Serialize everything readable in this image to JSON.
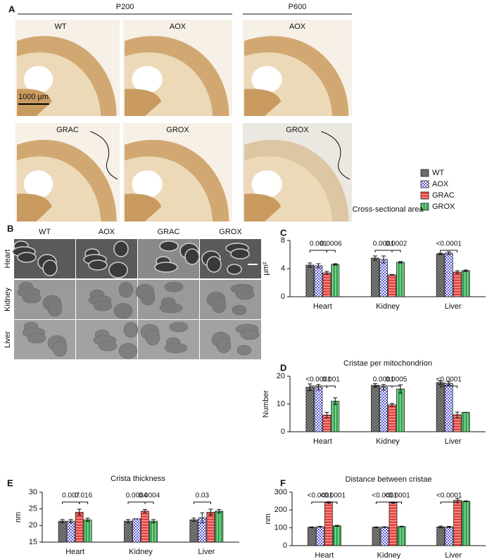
{
  "panel_a": {
    "label": "A",
    "groups": [
      "P200",
      "P600"
    ],
    "images": [
      "WT",
      "AOX",
      "AOX",
      "GRAC",
      "GROX",
      "GROX"
    ],
    "scale_bar": "1000 µm"
  },
  "panel_b": {
    "label": "B",
    "columns": [
      "WT",
      "AOX",
      "GRAC",
      "GROX"
    ],
    "rows": [
      "Heart",
      "Kidney",
      "Liver"
    ]
  },
  "chart_data": [
    {
      "type": "bar",
      "panel": "C",
      "title": "Cross-sectional area",
      "ylabel": "µm²",
      "categories": [
        "Heart",
        "Kidney",
        "Liver"
      ],
      "series": [
        {
          "name": "WT",
          "color": "#8c8c8c",
          "values": [
            4.5,
            5.5,
            6.1
          ],
          "errors": [
            0.3,
            0.3,
            0.1
          ]
        },
        {
          "name": "AOX",
          "color": "#5b5bd6",
          "values": [
            4.4,
            5.3,
            6.2
          ],
          "errors": [
            0.3,
            0.5,
            0.2
          ]
        },
        {
          "name": "GRAC",
          "color": "#e8413c",
          "values": [
            3.4,
            3.1,
            3.5
          ],
          "errors": [
            0.2,
            0.05,
            0.2
          ]
        },
        {
          "name": "GROX",
          "color": "#2ea84a",
          "values": [
            4.6,
            4.9,
            3.7
          ],
          "errors": [
            0.1,
            0.1,
            0.1
          ]
        }
      ],
      "ylim": [
        0,
        8
      ],
      "yticks": [
        0,
        4,
        8
      ],
      "annotations": [
        [
          "0.001",
          "0.0006"
        ],
        [
          "0.0001",
          "0.0002"
        ],
        [
          "<0.0001"
        ]
      ]
    },
    {
      "type": "bar",
      "panel": "D",
      "title": "Cristae per mitochondrion",
      "ylabel": "Number",
      "categories": [
        "Heart",
        "Kidney",
        "Liver"
      ],
      "series": [
        {
          "name": "WT",
          "color": "#8c8c8c",
          "values": [
            16,
            16.7,
            17.7
          ],
          "errors": [
            1.2,
            0.6,
            0.6
          ]
        },
        {
          "name": "AOX",
          "color": "#5b5bd6",
          "values": [
            16,
            16,
            17.4
          ],
          "errors": [
            1.0,
            1.0,
            0.6
          ]
        },
        {
          "name": "GRAC",
          "color": "#e8413c",
          "values": [
            6,
            9.7,
            6.1
          ],
          "errors": [
            1.0,
            0.5,
            1.0
          ]
        },
        {
          "name": "GROX",
          "color": "#2ea84a",
          "values": [
            11,
            15.4,
            7
          ],
          "errors": [
            1.2,
            1.5,
            0
          ]
        }
      ],
      "ylim": [
        0,
        20
      ],
      "yticks": [
        0,
        10,
        20
      ],
      "annotations": [
        [
          "<0.0001",
          "0.001"
        ],
        [
          "0.0001",
          "0.0005"
        ],
        [
          "<0.0001"
        ]
      ]
    },
    {
      "type": "bar",
      "panel": "E",
      "title": "Crista thickness",
      "ylabel": "nm",
      "categories": [
        "Heart",
        "Kidney",
        "Liver"
      ],
      "series": [
        {
          "name": "WT",
          "color": "#8c8c8c",
          "values": [
            21.3,
            21.3,
            21.7
          ],
          "errors": [
            0.5,
            0.5,
            0.5
          ]
        },
        {
          "name": "AOX",
          "color": "#5b5bd6",
          "values": [
            21.3,
            22,
            22.3
          ],
          "errors": [
            0.5,
            0,
            1.5
          ]
        },
        {
          "name": "GRAC",
          "color": "#e8413c",
          "values": [
            24,
            24.3,
            24
          ],
          "errors": [
            0.9,
            0.5,
            0.9
          ]
        },
        {
          "name": "GROX",
          "color": "#2ea84a",
          "values": [
            21.7,
            21.3,
            24.3
          ],
          "errors": [
            0.5,
            0.5,
            0.5
          ]
        }
      ],
      "ylim": [
        15,
        30
      ],
      "yticks": [
        15,
        20,
        25,
        30
      ],
      "annotations": [
        [
          "0.007",
          "0.016"
        ],
        [
          "0.0004",
          "0.0004"
        ],
        [
          "0.03"
        ]
      ]
    },
    {
      "type": "bar",
      "panel": "F",
      "title": "Distance between cristae",
      "ylabel": "nm",
      "categories": [
        "Heart",
        "Kidney",
        "Liver"
      ],
      "series": [
        {
          "name": "WT",
          "color": "#8c8c8c",
          "values": [
            103,
            103,
            105
          ],
          "errors": [
            2,
            2,
            5
          ]
        },
        {
          "name": "AOX",
          "color": "#5b5bd6",
          "values": [
            106,
            104,
            105
          ],
          "errors": [
            2,
            2,
            3
          ]
        },
        {
          "name": "GRAC",
          "color": "#e8413c",
          "values": [
            243,
            242,
            255
          ],
          "errors": [
            3,
            3,
            10
          ]
        },
        {
          "name": "GROX",
          "color": "#2ea84a",
          "values": [
            111,
            107,
            249
          ],
          "errors": [
            3,
            2,
            2
          ]
        }
      ],
      "ylim": [
        0,
        300
      ],
      "yticks": [
        0,
        100,
        200,
        300
      ],
      "annotations": [
        [
          "<0.0001",
          "<0.0001"
        ],
        [
          "<0.0001",
          "<0.0001"
        ],
        [
          "<0.0001"
        ]
      ]
    }
  ]
}
